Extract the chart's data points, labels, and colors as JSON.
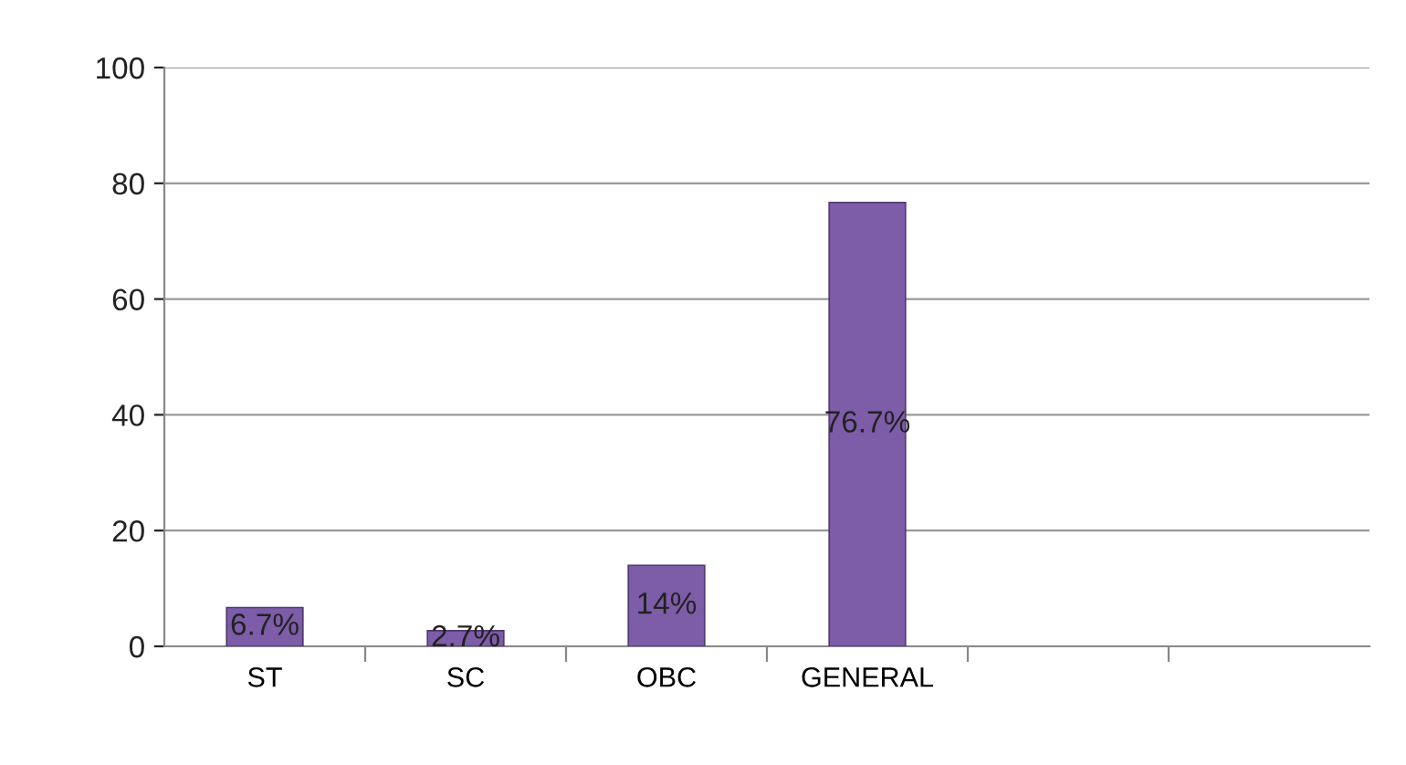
{
  "chart_data": {
    "type": "bar",
    "categories": [
      "ST",
      "SC",
      "OBC",
      "GENERAL",
      null,
      null
    ],
    "values": [
      6.7,
      2.7,
      14,
      76.7,
      null,
      null
    ],
    "value_labels": [
      "6.7%",
      "2.7%",
      "14%",
      "76.7%",
      null,
      null
    ],
    "color": "#7d5ca8",
    "ylim": [
      0,
      100
    ],
    "yticks": [
      0,
      20,
      40,
      60,
      80,
      100
    ],
    "grid": "y",
    "legend": false
  }
}
